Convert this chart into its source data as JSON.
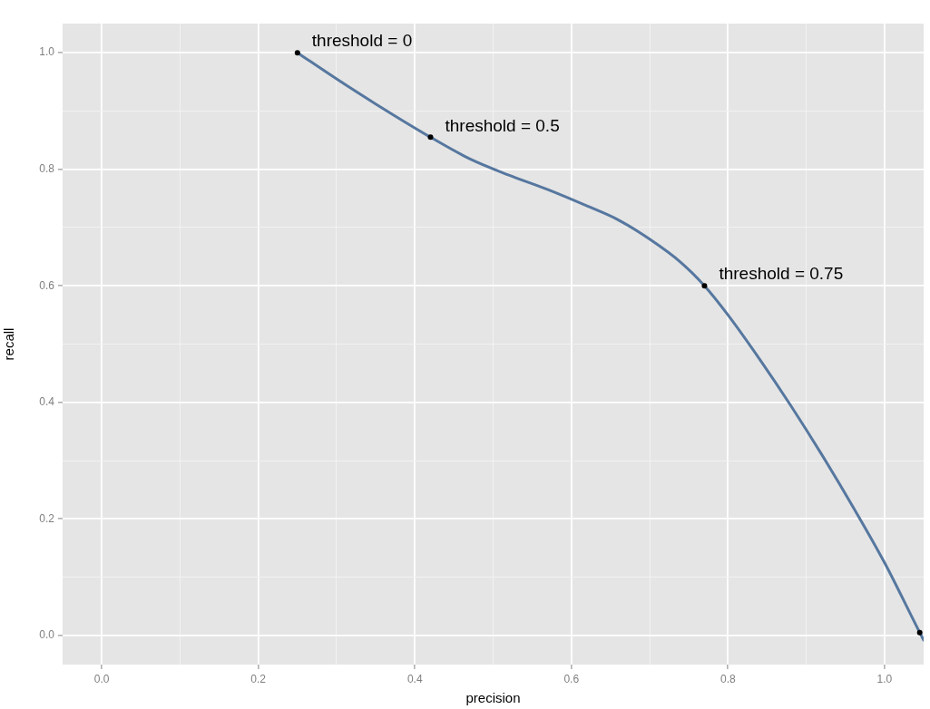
{
  "chart_data": {
    "type": "line",
    "xlabel": "precision",
    "ylabel": "recall",
    "xlim": [
      -0.05,
      1.05
    ],
    "ylim": [
      -0.05,
      1.05
    ],
    "xticks": [
      {
        "value": 0,
        "label": "0.0"
      },
      {
        "value": 0.1,
        "label": null
      },
      0.2,
      {
        "value": 0.3,
        "label": null
      },
      0.4,
      {
        "value": 0.5,
        "label": null
      },
      0.6,
      {
        "value": 0.7,
        "label": null
      },
      0.8,
      {
        "value": 0.9,
        "label": null
      },
      {
        "value": 1,
        "label": "1.0"
      }
    ],
    "yticks": [
      {
        "value": 0,
        "label": "0.0"
      },
      {
        "value": 0.1,
        "label": null
      },
      0.2,
      {
        "value": 0.3,
        "label": null
      },
      0.4,
      {
        "value": 0.5,
        "label": null
      },
      0.6,
      {
        "value": 0.7,
        "label": null
      },
      0.8,
      {
        "value": 0.9,
        "label": null
      },
      {
        "value": 1,
        "label": "1.0"
      }
    ],
    "grid": true,
    "series": [
      {
        "color": "#56779f",
        "marker": "none",
        "line_style": "solid",
        "x": [
          0.25,
          0.3,
          0.35,
          0.42,
          0.47,
          0.52,
          0.57,
          0.62,
          0.66,
          0.7,
          0.74,
          0.77,
          0.8,
          0.84,
          0.88,
          0.92,
          0.96,
          1.0,
          1.045,
          1.05
        ],
        "values": [
          1.0,
          0.955,
          0.912,
          0.855,
          0.818,
          0.79,
          0.765,
          0.737,
          0.713,
          0.68,
          0.64,
          0.6,
          0.55,
          0.475,
          0.395,
          0.31,
          0.22,
          0.125,
          0.005,
          -0.008
        ]
      },
      {
        "type": "scatter",
        "color": "#000000",
        "marker": "circle",
        "x": [
          0.25,
          0.42,
          0.77,
          1.045
        ],
        "values": [
          1.0,
          0.855,
          0.6,
          0.005
        ]
      }
    ],
    "annotations": [
      {
        "text": "threshold = 0",
        "x": 0.25,
        "y": 1.0
      },
      {
        "text": "threshold = 0.5",
        "x": 0.42,
        "y": 0.855
      },
      {
        "text": "threshold = 0.75",
        "x": 0.77,
        "y": 0.6
      }
    ]
  }
}
